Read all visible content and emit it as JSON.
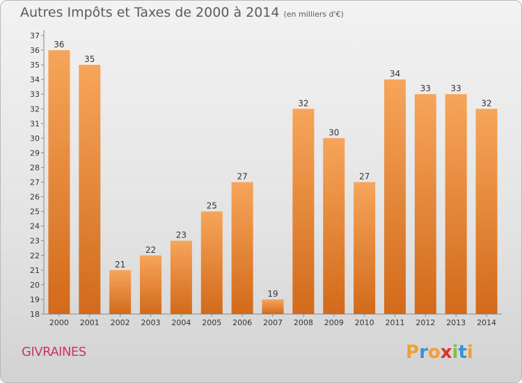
{
  "header": {
    "title": "Autres Impôts et Taxes de 2000 à 2014",
    "subtitle": "(en milliers d'€)"
  },
  "footer": {
    "town": "GIVRAINES",
    "logo": "Proxiti"
  },
  "colors": {
    "bar_top": "#f6a55a",
    "bar_bottom": "#d26a1a",
    "town": "#cc3366",
    "logo_letters": [
      "#f0a030",
      "#3a8fd8",
      "#f0a030",
      "#e0302a",
      "#7cc242",
      "#3a8fd8",
      "#f0a030"
    ]
  },
  "chart_data": {
    "type": "bar",
    "categories": [
      "2000",
      "2001",
      "2002",
      "2003",
      "2004",
      "2005",
      "2006",
      "2007",
      "2008",
      "2009",
      "2010",
      "2011",
      "2012",
      "2013",
      "2014"
    ],
    "values": [
      36,
      35,
      21,
      22,
      23,
      25,
      27,
      19,
      32,
      30,
      27,
      34,
      33,
      33,
      32
    ],
    "title": "Autres Impôts et Taxes de 2000 à 2014",
    "ylim": [
      18,
      37
    ],
    "yticks": [
      "18",
      "19",
      "20",
      "21",
      "22",
      "23",
      "24",
      "25",
      "26",
      "27",
      "28",
      "29",
      "30",
      "31",
      "32",
      "33",
      "34",
      "35",
      "36",
      "37"
    ],
    "grid": false
  }
}
